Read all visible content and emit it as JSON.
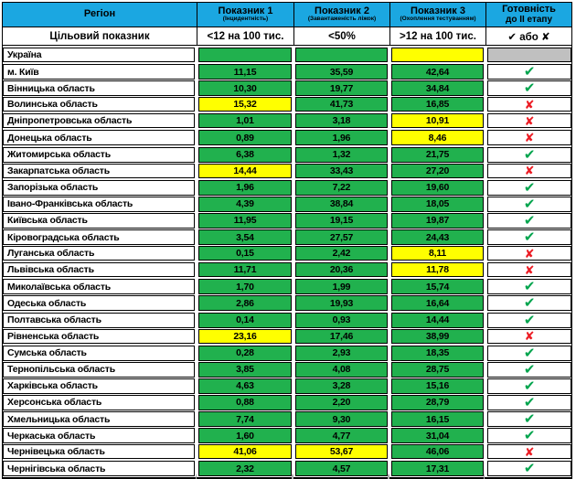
{
  "colors": {
    "header_blue": "#1BA7E1",
    "green": "#21B14E",
    "yellow": "#FFFF00",
    "gray": "#C0C0C0",
    "check_green": "#00A44D",
    "cross_red": "#EC1B23",
    "border": "#000000"
  },
  "icons": {
    "check": "✔",
    "cross": "✘"
  },
  "header": {
    "col_region": "Регіон",
    "col1_title": "Показник 1",
    "col1_sub": "(Інцидентність)",
    "col2_title": "Показник 2",
    "col2_sub": "(Завантаженість ліжок)",
    "col3_title": "Показник 3",
    "col3_sub": "(Охоплення тестуванням)",
    "col4_line1": "Готовність",
    "col4_line2": "до ІІ етапу"
  },
  "target_row": {
    "label": "Цільовий показник",
    "t1": "<12 на 100 тис.",
    "t2": "<50%",
    "t3": ">12 на 100 тис.",
    "t4": "✔ або ✘"
  },
  "rows": [
    {
      "region": "Україна",
      "v1": "",
      "c1": "green",
      "v2": "",
      "c2": "green",
      "v3": "",
      "c3": "yellow",
      "status": "none"
    },
    {
      "region": "м. Київ",
      "v1": "11,15",
      "c1": "green",
      "v2": "35,59",
      "c2": "green",
      "v3": "42,64",
      "c3": "green",
      "status": "check"
    },
    {
      "region": "Вінницька область",
      "v1": "10,30",
      "c1": "green",
      "v2": "19,77",
      "c2": "green",
      "v3": "34,84",
      "c3": "green",
      "status": "check"
    },
    {
      "region": "Волинська область",
      "v1": "15,32",
      "c1": "yellow",
      "v2": "41,73",
      "c2": "green",
      "v3": "16,85",
      "c3": "green",
      "status": "cross"
    },
    {
      "region": "Дніпропетровська область",
      "v1": "1,01",
      "c1": "green",
      "v2": "3,18",
      "c2": "green",
      "v3": "10,91",
      "c3": "yellow",
      "status": "cross"
    },
    {
      "region": "Донецька область",
      "v1": "0,89",
      "c1": "green",
      "v2": "1,96",
      "c2": "green",
      "v3": "8,46",
      "c3": "yellow",
      "status": "cross"
    },
    {
      "region": "Житомирська область",
      "v1": "6,38",
      "c1": "green",
      "v2": "1,32",
      "c2": "green",
      "v3": "21,75",
      "c3": "green",
      "status": "check"
    },
    {
      "region": "Закарпатська область",
      "v1": "14,44",
      "c1": "yellow",
      "v2": "33,43",
      "c2": "green",
      "v3": "27,20",
      "c3": "green",
      "status": "cross"
    },
    {
      "region": "Запорізька область",
      "v1": "1,96",
      "c1": "green",
      "v2": "7,22",
      "c2": "green",
      "v3": "19,60",
      "c3": "green",
      "status": "check"
    },
    {
      "region": "Івано-Франківська область",
      "v1": "4,39",
      "c1": "green",
      "v2": "38,84",
      "c2": "green",
      "v3": "18,05",
      "c3": "green",
      "status": "check"
    },
    {
      "region": "Київська область",
      "v1": "11,95",
      "c1": "green",
      "v2": "19,15",
      "c2": "green",
      "v3": "19,87",
      "c3": "green",
      "status": "check"
    },
    {
      "region": "Кіровоградська область",
      "v1": "3,54",
      "c1": "green",
      "v2": "27,57",
      "c2": "green",
      "v3": "24,43",
      "c3": "green",
      "status": "check"
    },
    {
      "region": "Луганська область",
      "v1": "0,15",
      "c1": "green",
      "v2": "2,42",
      "c2": "green",
      "v3": "8,11",
      "c3": "yellow",
      "status": "cross"
    },
    {
      "region": "Львівська область",
      "v1": "11,71",
      "c1": "green",
      "v2": "20,36",
      "c2": "green",
      "v3": "11,78",
      "c3": "yellow",
      "status": "cross"
    },
    {
      "region": "Миколаївська область",
      "v1": "1,70",
      "c1": "green",
      "v2": "1,99",
      "c2": "green",
      "v3": "15,74",
      "c3": "green",
      "status": "check"
    },
    {
      "region": "Одеська область",
      "v1": "2,86",
      "c1": "green",
      "v2": "19,93",
      "c2": "green",
      "v3": "16,64",
      "c3": "green",
      "status": "check"
    },
    {
      "region": "Полтавська область",
      "v1": "0,14",
      "c1": "green",
      "v2": "0,93",
      "c2": "green",
      "v3": "14,44",
      "c3": "green",
      "status": "check"
    },
    {
      "region": "Рівненська область",
      "v1": "23,16",
      "c1": "yellow",
      "v2": "17,46",
      "c2": "green",
      "v3": "38,99",
      "c3": "green",
      "status": "cross"
    },
    {
      "region": "Сумська область",
      "v1": "0,28",
      "c1": "green",
      "v2": "2,93",
      "c2": "green",
      "v3": "18,35",
      "c3": "green",
      "status": "check"
    },
    {
      "region": "Тернопільська область",
      "v1": "3,85",
      "c1": "green",
      "v2": "4,08",
      "c2": "green",
      "v3": "28,75",
      "c3": "green",
      "status": "check"
    },
    {
      "region": "Харківська область",
      "v1": "4,63",
      "c1": "green",
      "v2": "3,28",
      "c2": "green",
      "v3": "15,16",
      "c3": "green",
      "status": "check"
    },
    {
      "region": "Херсонська область",
      "v1": "0,88",
      "c1": "green",
      "v2": "2,20",
      "c2": "green",
      "v3": "28,79",
      "c3": "green",
      "status": "check"
    },
    {
      "region": "Хмельницька область",
      "v1": "7,74",
      "c1": "green",
      "v2": "9,30",
      "c2": "green",
      "v3": "16,15",
      "c3": "green",
      "status": "check"
    },
    {
      "region": "Черкаська область",
      "v1": "1,60",
      "c1": "green",
      "v2": "4,77",
      "c2": "green",
      "v3": "31,04",
      "c3": "green",
      "status": "check"
    },
    {
      "region": "Чернівецька область",
      "v1": "41,06",
      "c1": "yellow",
      "v2": "53,67",
      "c2": "yellow",
      "v3": "46,06",
      "c3": "green",
      "status": "cross"
    },
    {
      "region": "Чернігівська область",
      "v1": "2,32",
      "c1": "green",
      "v2": "4,57",
      "c2": "green",
      "v3": "17,31",
      "c3": "green",
      "status": "check"
    }
  ]
}
